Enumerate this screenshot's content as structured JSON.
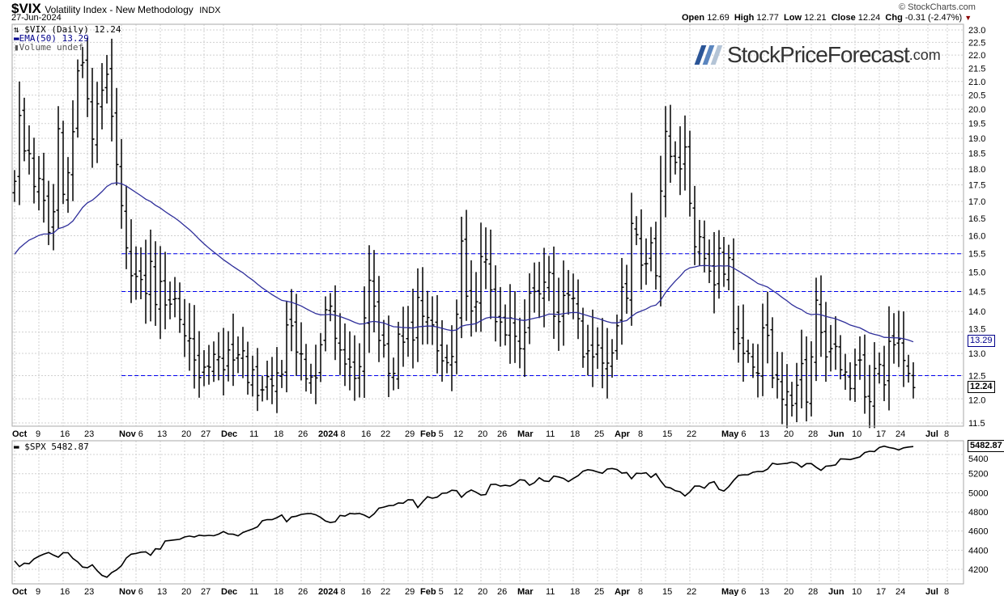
{
  "header": {
    "symbol": "$VIX",
    "name": "Volatility Index - New Methodology",
    "exchange": "INDX",
    "date": "27-Jun-2024",
    "copyright": "© StockCharts.com",
    "open_label": "Open",
    "open": "12.69",
    "high_label": "High",
    "high": "12.77",
    "low_label": "Low",
    "low": "12.21",
    "close_label": "Close",
    "close": "12.24",
    "chg_label": "Chg",
    "chg": "-0.31 (-2.47%)"
  },
  "logo": {
    "text": "StockPriceForecast",
    "domain": ".com",
    "colors": [
      "#2b5597",
      "#5b86bf",
      "#b4c4d6"
    ]
  },
  "legend": {
    "vix": "$VIX (Daily) 12.24",
    "ema": "EMA(50) 13.29",
    "volume": "Volume undef",
    "spx": "$SPX 5482.87"
  },
  "tags": {
    "ema": "13.29",
    "vix": "12.24",
    "spx": "5482.87"
  },
  "colors": {
    "ema": "#2e2e9a",
    "hline": "#0000ee",
    "bars": "#000000",
    "grid": "#d0d0d0",
    "down": "#8b0000"
  },
  "chart_data": [
    {
      "type": "ohlc",
      "title": "$VIX (Daily)",
      "scale": "log",
      "ylim": [
        11.5,
        23.0
      ],
      "yticks": [
        "23.0",
        "22.5",
        "22.0",
        "21.5",
        "21.0",
        "20.5",
        "20.0",
        "19.5",
        "19.0",
        "18.5",
        "18.0",
        "17.5",
        "17.0",
        "16.5",
        "16.0",
        "15.5",
        "15.0",
        "14.5",
        "14.0",
        "13.5",
        "13.0",
        "12.5",
        "12.0",
        "11.5"
      ],
      "hlines": [
        15.5,
        14.5,
        12.5
      ],
      "ema_period": 50,
      "ema_seed": 15.4,
      "closes": [
        17.61,
        19.78,
        18.58,
        18.49,
        17.45,
        17.7,
        17.03,
        16.09,
        16.69,
        19.32,
        17.21,
        17.88,
        19.22,
        21.4,
        21.71,
        20.37,
        18.97,
        20.19,
        20.68,
        21.27,
        19.75,
        18.14,
        16.87,
        15.66,
        14.91,
        14.89,
        14.81,
        14.45,
        15.29,
        14.17,
        14.76,
        14.16,
        14.18,
        14.32,
        13.8,
        13.41,
        13.35,
        12.85,
        12.46,
        12.69,
        12.69,
        12.98,
        12.92,
        12.63,
        13.08,
        12.85,
        12.97,
        13.06,
        12.35,
        12.63,
        12.07,
        12.19,
        12.48,
        12.28,
        12.56,
        12.53,
        13.67,
        13.65,
        13.03,
        12.99,
        12.43,
        12.47,
        12.45,
        13.2,
        14.04,
        14.13,
        13.35,
        13.08,
        12.76,
        12.69,
        12.44,
        12.7,
        13.84,
        14.79,
        14.13,
        13.3,
        13.19,
        12.55,
        12.55,
        13.45,
        13.26,
        13.6,
        13.31,
        14.35,
        13.88,
        13.85,
        13.67,
        13.06,
        12.83,
        12.79,
        12.93,
        13.93,
        15.85,
        14.38,
        14.01,
        14.24,
        15.42,
        15.34,
        14.54,
        13.75,
        13.74,
        13.43,
        13.84,
        13.4,
        13.11,
        13.49,
        14.46,
        14.5,
        14.44,
        14.74,
        15.0,
        13.88,
        13.75,
        14.4,
        14.41,
        14.33,
        13.82,
        12.92,
        13.06,
        12.92,
        13.19,
        12.78,
        12.78,
        13.01,
        13.65,
        14.61,
        14.33,
        16.35,
        16.03,
        15.19,
        15.23,
        15.8,
        14.91,
        17.31,
        19.23,
        18.4,
        18.21,
        18.0,
        18.71,
        16.94,
        15.69,
        15.97,
        15.37,
        15.03,
        14.67,
        15.65,
        14.95,
        15.39,
        13.49,
        13.23,
        13.0,
        13.0,
        12.69,
        12.55,
        13.6,
        13.42,
        12.45,
        12.42,
        11.99,
        12.15,
        11.86,
        12.29,
        12.77,
        11.93,
        12.92,
        14.28,
        13.49,
        12.92,
        13.11,
        13.16,
        12.63,
        12.58,
        12.22,
        12.74,
        12.85,
        12.04,
        11.94,
        12.66,
        12.75,
        12.3,
        13.28,
        13.2,
        13.33,
        12.84,
        12.55,
        12.24
      ]
    },
    {
      "type": "line",
      "title": "$SPX",
      "ylim": [
        4100,
        5550
      ],
      "yticks": [
        "5400",
        "5200",
        "5000",
        "4800",
        "4600",
        "4400",
        "4200"
      ],
      "values": [
        4288,
        4229,
        4263,
        4258,
        4308,
        4336,
        4358,
        4376,
        4349,
        4327,
        4373,
        4373,
        4314,
        4278,
        4224,
        4217,
        4247,
        4186,
        4137,
        4117,
        4166,
        4194,
        4238,
        4318,
        4358,
        4366,
        4379,
        4383,
        4347,
        4415,
        4411,
        4496,
        4502,
        4508,
        4514,
        4538,
        4547,
        4538,
        4557,
        4550,
        4555,
        4551,
        4568,
        4595,
        4569,
        4567,
        4550,
        4585,
        4604,
        4622,
        4644,
        4707,
        4720,
        4719,
        4740,
        4768,
        4698,
        4747,
        4755,
        4774,
        4781,
        4783,
        4770,
        4743,
        4705,
        4689,
        4697,
        4764,
        4756,
        4783,
        4780,
        4784,
        4766,
        4739,
        4780,
        4840,
        4850,
        4865,
        4868,
        4894,
        4891,
        4928,
        4925,
        4846,
        4906,
        4959,
        4943,
        4955,
        4995,
        4998,
        5027,
        5022,
        4953,
        5001,
        5029,
        5006,
        4976,
        4982,
        5087,
        5089,
        5070,
        5078,
        5070,
        5096,
        5137,
        5131,
        5079,
        5105,
        5157,
        5124,
        5118,
        5175,
        5165,
        5150,
        5117,
        5149,
        5179,
        5225,
        5241,
        5234,
        5218,
        5204,
        5248,
        5254,
        5243,
        5206,
        5211,
        5147,
        5204,
        5202,
        5209,
        5161,
        5199,
        5123,
        5061,
        5051,
        5022,
        5011,
        4967,
        5010,
        5070,
        5071,
        5048,
        5100,
        5116,
        5036,
        5018,
        5064,
        5128,
        5181,
        5187,
        5188,
        5214,
        5223,
        5221,
        5247,
        5308,
        5297,
        5303,
        5308,
        5321,
        5307,
        5268,
        5305,
        5306,
        5267,
        5235,
        5278,
        5283,
        5291,
        5354,
        5352,
        5347,
        5361,
        5375,
        5421,
        5434,
        5431,
        5473,
        5487,
        5473,
        5465,
        5448,
        5470,
        5478,
        5483
      ]
    }
  ],
  "xaxis": [
    {
      "label": "Oct",
      "i": 0,
      "bold": true
    },
    {
      "label": "9",
      "i": 5
    },
    {
      "label": "16",
      "i": 10
    },
    {
      "label": "23",
      "i": 15
    },
    {
      "label": "Nov",
      "i": 22,
      "bold": true
    },
    {
      "label": "6",
      "i": 25
    },
    {
      "label": "13",
      "i": 30
    },
    {
      "label": "20",
      "i": 35
    },
    {
      "label": "27",
      "i": 39
    },
    {
      "label": "Dec",
      "i": 43,
      "bold": true
    },
    {
      "label": "11",
      "i": 49
    },
    {
      "label": "18",
      "i": 54
    },
    {
      "label": "26",
      "i": 59
    },
    {
      "label": "2024",
      "i": 63,
      "bold": true
    },
    {
      "label": "8",
      "i": 67
    },
    {
      "label": "16",
      "i": 72
    },
    {
      "label": "22",
      "i": 76
    },
    {
      "label": "29",
      "i": 81
    },
    {
      "label": "Feb",
      "i": 84,
      "bold": true
    },
    {
      "label": "5",
      "i": 86
    },
    {
      "label": "12",
      "i": 91
    },
    {
      "label": "20",
      "i": 96
    },
    {
      "label": "26",
      "i": 100
    },
    {
      "label": "Mar",
      "i": 104,
      "bold": true
    },
    {
      "label": "11",
      "i": 110
    },
    {
      "label": "18",
      "i": 115
    },
    {
      "label": "25",
      "i": 120
    },
    {
      "label": "Apr",
      "i": 124,
      "bold": true
    },
    {
      "label": "8",
      "i": 129
    },
    {
      "label": "15",
      "i": 134
    },
    {
      "label": "22",
      "i": 139
    },
    {
      "label": "May",
      "i": 146,
      "bold": true
    },
    {
      "label": "6",
      "i": 149
    },
    {
      "label": "13",
      "i": 154
    },
    {
      "label": "20",
      "i": 159
    },
    {
      "label": "28",
      "i": 164
    },
    {
      "label": "Jun",
      "i": 168,
      "bold": true
    },
    {
      "label": "10",
      "i": 173
    },
    {
      "label": "17",
      "i": 178
    },
    {
      "label": "24",
      "i": 182
    },
    {
      "label": "Jul",
      "i": 188,
      "bold": true
    },
    {
      "label": "8",
      "i": 192
    }
  ]
}
